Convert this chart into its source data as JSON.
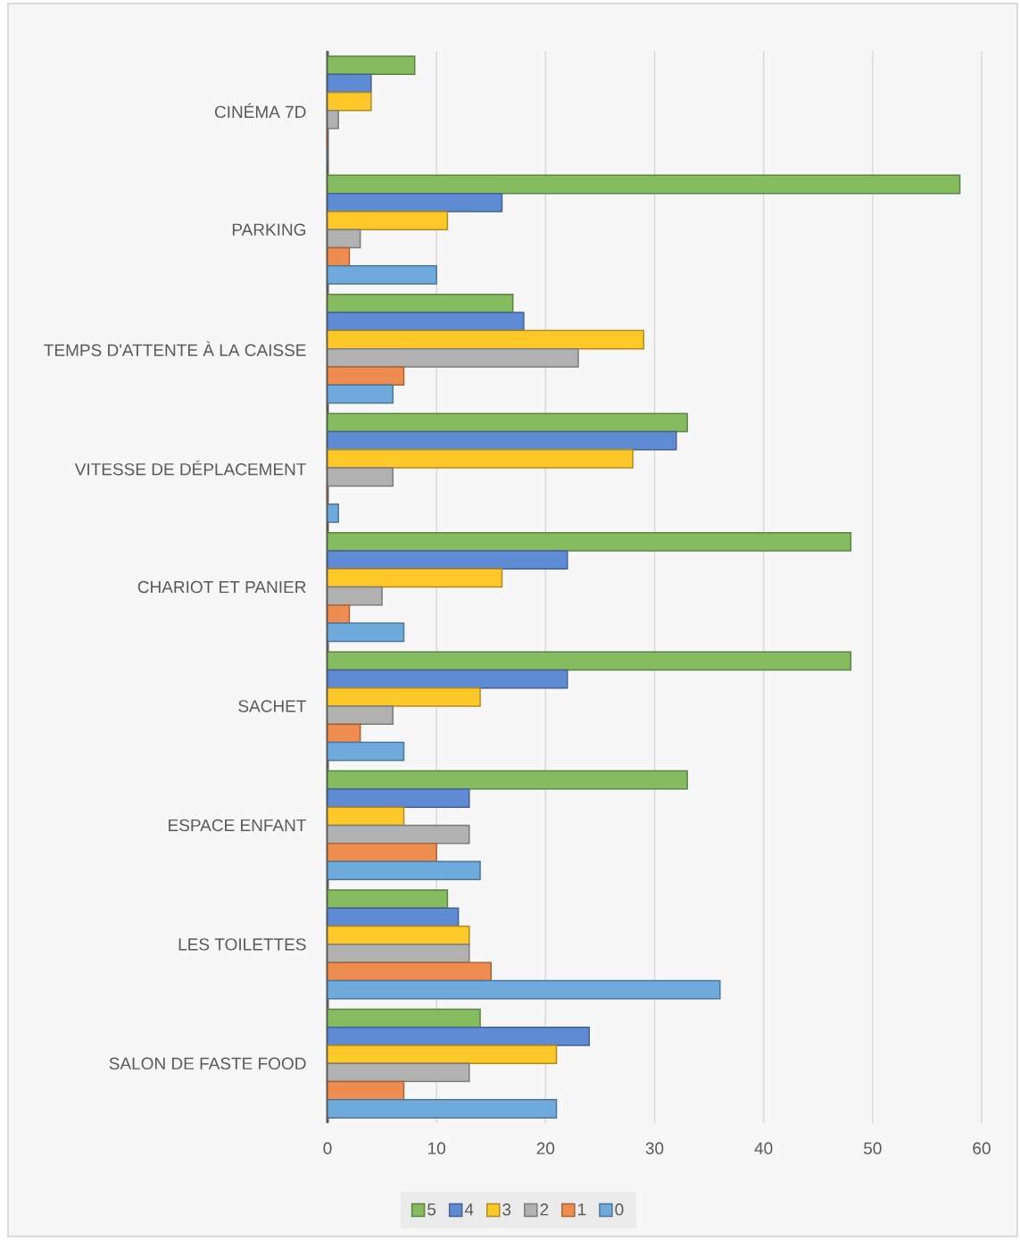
{
  "chart_data": {
    "type": "bar",
    "orientation": "horizontal",
    "categories": [
      "CINÉMA 7D",
      "PARKING",
      "TEMPS D'ATTENTE À LA CAISSE",
      "VITESSE DE DÉPLACEMENT",
      "CHARIOT ET PANIER",
      "SACHET",
      "ESPACE ENFANT",
      "LES TOILETTES",
      "SALON DE FASTE FOOD"
    ],
    "series": [
      {
        "name": "5",
        "color": "#84bc5f",
        "values": [
          8,
          58,
          17,
          33,
          48,
          48,
          33,
          11,
          14
        ]
      },
      {
        "name": "4",
        "color": "#5f8bd4",
        "values": [
          4,
          16,
          18,
          32,
          22,
          22,
          13,
          12,
          24
        ]
      },
      {
        "name": "3",
        "color": "#fdc828",
        "values": [
          4,
          11,
          29,
          28,
          16,
          14,
          7,
          13,
          21
        ]
      },
      {
        "name": "2",
        "color": "#b1b1b1",
        "values": [
          1,
          3,
          23,
          6,
          5,
          6,
          13,
          13,
          13
        ]
      },
      {
        "name": "1",
        "color": "#ef8c4f",
        "values": [
          0,
          2,
          7,
          0,
          2,
          3,
          10,
          15,
          7
        ]
      },
      {
        "name": "0",
        "color": "#6eaadc",
        "values": [
          0,
          10,
          6,
          1,
          7,
          7,
          14,
          36,
          21
        ]
      }
    ],
    "xlim": [
      0,
      60
    ],
    "xticks": [
      0,
      10,
      20,
      30,
      40,
      50,
      60
    ],
    "grid": "x",
    "legend": "bottom"
  }
}
